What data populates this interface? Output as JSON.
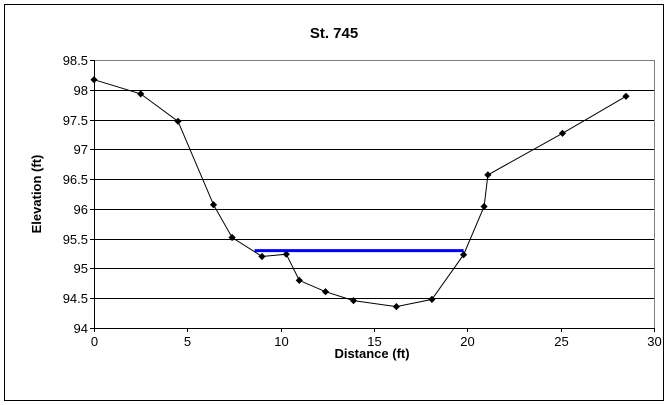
{
  "chart_data": {
    "type": "scatter",
    "title": "St. 745",
    "xlabel": "Distance (ft)",
    "ylabel": "Elevation (ft)",
    "xlim": [
      0,
      30
    ],
    "ylim": [
      94,
      98.5
    ],
    "x_ticks": [
      "0",
      "5",
      "10",
      "15",
      "20",
      "25",
      "30"
    ],
    "y_ticks": [
      "94",
      "94.5",
      "95",
      "95.5",
      "96",
      "96.5",
      "97",
      "97.5",
      "98",
      "98.5"
    ],
    "grid": "horizontal",
    "series": [
      {
        "type": "line-with-markers",
        "color": "#000000",
        "marker": "diamond",
        "x": [
          0,
          2.5,
          4.5,
          6.4,
          7.4,
          9.0,
          10.3,
          11.0,
          12.4,
          13.9,
          16.2,
          18.1,
          19.8,
          20.9,
          21.1,
          25.1,
          28.5
        ],
        "y": [
          98.17,
          97.93,
          97.47,
          96.07,
          95.52,
          95.2,
          95.24,
          94.8,
          94.61,
          94.46,
          94.36,
          94.48,
          95.23,
          96.04,
          96.57,
          97.27,
          97.89
        ]
      },
      {
        "type": "line",
        "color": "#0000ff",
        "x": [
          8.6,
          19.8
        ],
        "y": [
          95.3,
          95.3
        ]
      }
    ]
  }
}
